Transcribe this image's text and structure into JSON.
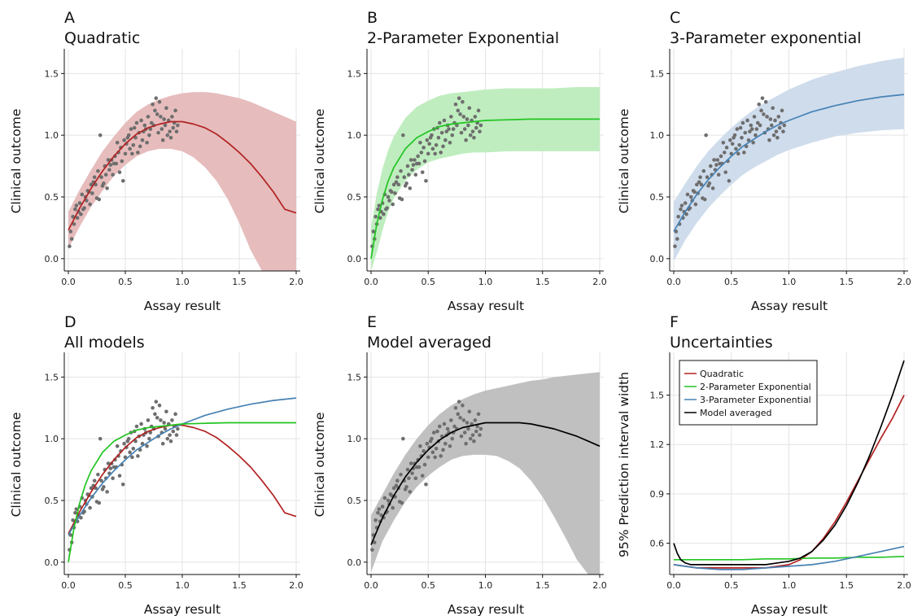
{
  "colors": {
    "quadratic": "#b22222",
    "quadratic_band": "#e6bcbc",
    "exp2": "#22c422",
    "exp2_band": "#bfedbf",
    "exp3": "#4682b4",
    "exp3_band": "#cfdcec",
    "averaged": "#000000",
    "averaged_band": "#c0c0c0",
    "points": "#6e6e6e"
  },
  "chart_data": [
    {
      "id": "A",
      "letter": "A",
      "type": "line",
      "title": "Quadratic",
      "xlabel": "Assay result",
      "ylabel": "Clinical outcome",
      "xlim": [
        0,
        2
      ],
      "ylim": [
        -0.1,
        1.7
      ],
      "xticks": [
        "0.0",
        "0.5",
        "1.0",
        "1.5",
        "2.0"
      ],
      "yticks": [
        "0.0",
        "0.5",
        "1.0",
        "1.5"
      ],
      "grid": true,
      "show_points": true,
      "series": [
        {
          "key": "quadratic",
          "x": [
            0,
            0.1,
            0.2,
            0.3,
            0.4,
            0.5,
            0.6,
            0.7,
            0.8,
            0.9,
            1.0,
            1.1,
            1.2,
            1.3,
            1.4,
            1.5,
            1.6,
            1.7,
            1.8,
            1.9,
            2.0
          ],
          "y": [
            0.23,
            0.41,
            0.57,
            0.71,
            0.83,
            0.93,
            1.01,
            1.06,
            1.09,
            1.11,
            1.11,
            1.09,
            1.06,
            1.01,
            0.94,
            0.86,
            0.77,
            0.66,
            0.54,
            0.4,
            0.37
          ],
          "band_lower": [
            0.08,
            0.26,
            0.42,
            0.55,
            0.67,
            0.76,
            0.83,
            0.87,
            0.89,
            0.89,
            0.87,
            0.82,
            0.74,
            0.63,
            0.48,
            0.29,
            0.07,
            -0.1,
            -0.1,
            -0.1,
            -0.1
          ],
          "band_upper": [
            0.38,
            0.56,
            0.72,
            0.87,
            0.99,
            1.1,
            1.19,
            1.25,
            1.29,
            1.32,
            1.34,
            1.35,
            1.35,
            1.34,
            1.32,
            1.3,
            1.27,
            1.23,
            1.19,
            1.15,
            1.11
          ]
        }
      ]
    },
    {
      "id": "B",
      "letter": "B",
      "type": "line",
      "title": "2-Parameter Exponential",
      "xlabel": "Assay result",
      "ylabel": "Clinical outcome",
      "xlim": [
        0,
        2
      ],
      "ylim": [
        -0.1,
        1.7
      ],
      "xticks": [
        "0.0",
        "0.5",
        "1.0",
        "1.5",
        "2.0"
      ],
      "yticks": [
        "0.0",
        "0.5",
        "1.0",
        "1.5"
      ],
      "grid": true,
      "show_points": true,
      "series": [
        {
          "key": "exp2",
          "x": [
            0,
            0.05,
            0.1,
            0.15,
            0.2,
            0.3,
            0.4,
            0.5,
            0.6,
            0.7,
            0.8,
            0.9,
            1.0,
            1.2,
            1.4,
            1.6,
            1.8,
            2.0
          ],
          "y": [
            0.0,
            0.28,
            0.48,
            0.63,
            0.74,
            0.89,
            0.98,
            1.03,
            1.07,
            1.09,
            1.1,
            1.11,
            1.12,
            1.125,
            1.13,
            1.13,
            1.13,
            1.13
          ],
          "band_lower": [
            -0.1,
            0.05,
            0.23,
            0.38,
            0.49,
            0.63,
            0.72,
            0.78,
            0.81,
            0.83,
            0.85,
            0.86,
            0.86,
            0.87,
            0.87,
            0.87,
            0.87,
            0.87
          ],
          "band_upper": [
            0.25,
            0.53,
            0.73,
            0.88,
            0.99,
            1.14,
            1.23,
            1.28,
            1.32,
            1.34,
            1.35,
            1.36,
            1.37,
            1.38,
            1.38,
            1.38,
            1.39,
            1.39
          ]
        }
      ]
    },
    {
      "id": "C",
      "letter": "C",
      "type": "line",
      "title": "3-Parameter exponential",
      "xlabel": "Assay result",
      "ylabel": "Clinical outcome",
      "xlim": [
        0,
        2
      ],
      "ylim": [
        -0.1,
        1.7
      ],
      "xticks": [
        "0.0",
        "0.5",
        "1.0",
        "1.5",
        "2.0"
      ],
      "yticks": [
        "0.0",
        "0.5",
        "1.0",
        "1.5"
      ],
      "grid": true,
      "show_points": true,
      "series": [
        {
          "key": "exp3",
          "x": [
            0,
            0.1,
            0.2,
            0.3,
            0.4,
            0.5,
            0.6,
            0.7,
            0.8,
            0.9,
            1.0,
            1.2,
            1.4,
            1.6,
            1.8,
            2.0
          ],
          "y": [
            0.22,
            0.38,
            0.52,
            0.64,
            0.74,
            0.83,
            0.91,
            0.97,
            1.03,
            1.08,
            1.12,
            1.19,
            1.24,
            1.28,
            1.31,
            1.33
          ],
          "band_lower": [
            -0.02,
            0.15,
            0.29,
            0.41,
            0.51,
            0.6,
            0.68,
            0.74,
            0.79,
            0.84,
            0.88,
            0.94,
            0.99,
            1.02,
            1.04,
            1.05
          ],
          "band_upper": [
            0.46,
            0.61,
            0.75,
            0.87,
            0.97,
            1.06,
            1.14,
            1.21,
            1.27,
            1.32,
            1.37,
            1.45,
            1.51,
            1.56,
            1.6,
            1.63
          ]
        }
      ]
    },
    {
      "id": "D",
      "letter": "D",
      "type": "line",
      "title": "All models",
      "xlabel": "Assay result",
      "ylabel": "Clinical outcome",
      "xlim": [
        0,
        2
      ],
      "ylim": [
        -0.1,
        1.7
      ],
      "xticks": [
        "0.0",
        "0.5",
        "1.0",
        "1.5",
        "2.0"
      ],
      "yticks": [
        "0.0",
        "0.5",
        "1.0",
        "1.5"
      ],
      "grid": true,
      "show_points": true,
      "series": [
        {
          "key": "quadratic",
          "x": [
            0,
            0.1,
            0.2,
            0.3,
            0.4,
            0.5,
            0.6,
            0.7,
            0.8,
            0.9,
            1.0,
            1.1,
            1.2,
            1.3,
            1.4,
            1.5,
            1.6,
            1.7,
            1.8,
            1.9,
            2.0
          ],
          "y": [
            0.23,
            0.41,
            0.57,
            0.71,
            0.83,
            0.93,
            1.01,
            1.06,
            1.09,
            1.11,
            1.11,
            1.09,
            1.06,
            1.01,
            0.94,
            0.86,
            0.77,
            0.66,
            0.54,
            0.4,
            0.37
          ]
        },
        {
          "key": "exp3",
          "x": [
            0,
            0.1,
            0.2,
            0.3,
            0.4,
            0.5,
            0.6,
            0.7,
            0.8,
            0.9,
            1.0,
            1.2,
            1.4,
            1.6,
            1.8,
            2.0
          ],
          "y": [
            0.22,
            0.38,
            0.52,
            0.64,
            0.74,
            0.83,
            0.91,
            0.97,
            1.03,
            1.08,
            1.12,
            1.19,
            1.24,
            1.28,
            1.31,
            1.33
          ]
        },
        {
          "key": "exp2",
          "x": [
            0,
            0.05,
            0.1,
            0.15,
            0.2,
            0.3,
            0.4,
            0.5,
            0.6,
            0.7,
            0.8,
            0.9,
            1.0,
            1.2,
            1.4,
            1.6,
            1.8,
            2.0
          ],
          "y": [
            0.0,
            0.28,
            0.48,
            0.63,
            0.74,
            0.89,
            0.98,
            1.03,
            1.07,
            1.09,
            1.1,
            1.11,
            1.12,
            1.125,
            1.13,
            1.13,
            1.13,
            1.13
          ]
        }
      ]
    },
    {
      "id": "E",
      "letter": "E",
      "type": "line",
      "title": "Model averaged",
      "xlabel": "Assay result",
      "ylabel": "Clinical outcome",
      "xlim": [
        0,
        2
      ],
      "ylim": [
        -0.1,
        1.7
      ],
      "xticks": [
        "0.0",
        "0.5",
        "1.0",
        "1.5",
        "2.0"
      ],
      "yticks": [
        "0.0",
        "0.5",
        "1.0",
        "1.5"
      ],
      "grid": true,
      "show_points": true,
      "series": [
        {
          "key": "averaged",
          "x": [
            0,
            0.1,
            0.2,
            0.3,
            0.4,
            0.5,
            0.6,
            0.7,
            0.8,
            0.9,
            1.0,
            1.1,
            1.2,
            1.3,
            1.4,
            1.5,
            1.6,
            1.7,
            1.8,
            1.9,
            2.0
          ],
          "y": [
            0.14,
            0.36,
            0.54,
            0.69,
            0.81,
            0.91,
            0.99,
            1.05,
            1.09,
            1.11,
            1.13,
            1.13,
            1.13,
            1.13,
            1.12,
            1.1,
            1.08,
            1.05,
            1.02,
            0.98,
            0.94
          ],
          "band_lower": [
            -0.08,
            0.17,
            0.34,
            0.49,
            0.61,
            0.7,
            0.77,
            0.83,
            0.86,
            0.87,
            0.87,
            0.86,
            0.82,
            0.76,
            0.66,
            0.53,
            0.37,
            0.2,
            0.02,
            -0.1,
            -0.1
          ],
          "band_upper": [
            0.38,
            0.55,
            0.72,
            0.87,
            1.0,
            1.11,
            1.2,
            1.27,
            1.32,
            1.36,
            1.39,
            1.41,
            1.43,
            1.45,
            1.47,
            1.48,
            1.5,
            1.51,
            1.52,
            1.53,
            1.54
          ]
        }
      ]
    },
    {
      "id": "F",
      "letter": "F",
      "type": "line",
      "title": "Uncertainties",
      "xlabel": "Assay result",
      "ylabel": "95% Prediction interval width",
      "xlim": [
        0,
        2
      ],
      "ylim": [
        0.41,
        1.76
      ],
      "xticks": [
        "0.0",
        "0.5",
        "1.0",
        "1.5",
        "2.0"
      ],
      "yticks": [
        "0.6",
        "0.9",
        "1.2",
        "1.5"
      ],
      "grid": true,
      "show_points": false,
      "legend": {
        "position": "top-left",
        "entries": [
          "Quadratic",
          "2-Parameter Exponential",
          "3-Parameter Exponential",
          "Model averaged"
        ]
      },
      "series": [
        {
          "key": "quadratic",
          "name": "Quadratic",
          "x": [
            0,
            0.1,
            0.2,
            0.3,
            0.4,
            0.5,
            0.6,
            0.7,
            0.8,
            0.9,
            1.0,
            1.1,
            1.2,
            1.3,
            1.4,
            1.5,
            1.6,
            1.7,
            1.8,
            1.9,
            1.95,
            2.0
          ],
          "y": [
            0.47,
            0.46,
            0.45,
            0.45,
            0.45,
            0.45,
            0.45,
            0.45,
            0.45,
            0.46,
            0.47,
            0.5,
            0.55,
            0.63,
            0.73,
            0.85,
            0.98,
            1.11,
            1.24,
            1.36,
            1.43,
            1.5
          ]
        },
        {
          "key": "exp2",
          "name": "2-Parameter Exponential",
          "x": [
            0,
            0.2,
            0.4,
            0.6,
            0.8,
            1.0,
            1.2,
            1.4,
            1.6,
            1.8,
            2.0
          ],
          "y": [
            0.5,
            0.5,
            0.5,
            0.5,
            0.505,
            0.505,
            0.51,
            0.51,
            0.515,
            0.515,
            0.52
          ]
        },
        {
          "key": "exp3",
          "name": "3-Parameter Exponential",
          "x": [
            0,
            0.2,
            0.4,
            0.6,
            0.8,
            1.0,
            1.2,
            1.4,
            1.6,
            1.8,
            2.0
          ],
          "y": [
            0.47,
            0.45,
            0.44,
            0.44,
            0.45,
            0.46,
            0.47,
            0.49,
            0.52,
            0.55,
            0.58
          ]
        },
        {
          "key": "averaged",
          "name": "Model averaged",
          "x": [
            0,
            0.03,
            0.06,
            0.1,
            0.15,
            0.2,
            0.3,
            0.4,
            0.5,
            0.6,
            0.7,
            0.8,
            0.9,
            1.0,
            1.1,
            1.2,
            1.3,
            1.4,
            1.5,
            1.6,
            1.7,
            1.8,
            1.9,
            2.0
          ],
          "y": [
            0.6,
            0.54,
            0.5,
            0.48,
            0.47,
            0.47,
            0.47,
            0.47,
            0.47,
            0.47,
            0.47,
            0.47,
            0.48,
            0.49,
            0.51,
            0.55,
            0.62,
            0.71,
            0.83,
            0.97,
            1.13,
            1.31,
            1.5,
            1.71
          ]
        }
      ]
    }
  ],
  "scatter_points": {
    "x": [
      0.01,
      0.02,
      0.03,
      0.04,
      0.05,
      0.06,
      0.07,
      0.08,
      0.09,
      0.1,
      0.11,
      0.12,
      0.13,
      0.14,
      0.15,
      0.16,
      0.17,
      0.18,
      0.19,
      0.2,
      0.21,
      0.22,
      0.23,
      0.24,
      0.25,
      0.26,
      0.27,
      0.28,
      0.29,
      0.3,
      0.31,
      0.32,
      0.33,
      0.34,
      0.35,
      0.36,
      0.37,
      0.38,
      0.39,
      0.4,
      0.41,
      0.42,
      0.43,
      0.44,
      0.45,
      0.46,
      0.47,
      0.48,
      0.49,
      0.5,
      0.51,
      0.52,
      0.53,
      0.54,
      0.55,
      0.56,
      0.57,
      0.58,
      0.59,
      0.6,
      0.61,
      0.62,
      0.63,
      0.64,
      0.65,
      0.66,
      0.67,
      0.68,
      0.69,
      0.7,
      0.71,
      0.72,
      0.73,
      0.74,
      0.75,
      0.76,
      0.77,
      0.78,
      0.79,
      0.8,
      0.81,
      0.82,
      0.83,
      0.84,
      0.85,
      0.86,
      0.87,
      0.88,
      0.89,
      0.9,
      0.91,
      0.92,
      0.93,
      0.94,
      0.95,
      0.96
    ],
    "y": [
      0.1,
      0.22,
      0.16,
      0.34,
      0.28,
      0.4,
      0.43,
      0.33,
      0.38,
      0.45,
      0.36,
      0.52,
      0.4,
      0.41,
      0.5,
      0.47,
      0.55,
      0.54,
      0.44,
      0.6,
      0.53,
      0.62,
      0.66,
      0.6,
      0.49,
      0.71,
      0.48,
      1.0,
      0.66,
      0.59,
      0.61,
      0.75,
      0.68,
      0.57,
      0.8,
      0.72,
      0.76,
      0.8,
      0.68,
      0.77,
      0.83,
      0.77,
      0.94,
      0.86,
      0.7,
      0.9,
      0.79,
      0.63,
      0.96,
      0.85,
      0.93,
      0.98,
      1.0,
      0.89,
      1.05,
      0.85,
      0.92,
      1.06,
      0.98,
      1.1,
      0.86,
      1.02,
      0.91,
      1.12,
      0.96,
      1.03,
      1.08,
      1.05,
      0.94,
      1.15,
      1.0,
      1.05,
      1.1,
      1.25,
      1.08,
      1.2,
      1.3,
      1.17,
      1.02,
      1.27,
      1.15,
      1.05,
      0.96,
      1.13,
      1.08,
      1.22,
      1.0,
      1.12,
      1.03,
      0.98,
      1.15,
      1.06,
      1.1,
      1.2,
      1.03,
      1.08
    ]
  }
}
